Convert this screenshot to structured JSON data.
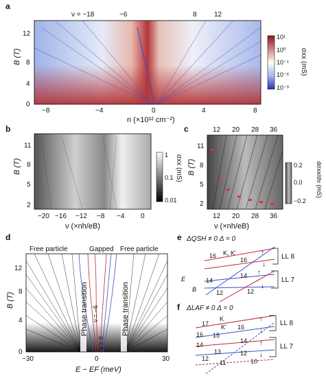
{
  "panels": {
    "a": {
      "label": "a",
      "nu_markers": [
        "ν = −18",
        "−6",
        "8",
        "12"
      ],
      "ylabel": "B (T)",
      "xlabel": "n (×10¹² cm⁻²)",
      "xticks": [
        "−8",
        "−4",
        "0",
        "4",
        "8"
      ],
      "yticks": [
        "0",
        "4",
        "8",
        "12"
      ],
      "cbar_label": "σxx (mS)",
      "cbar_ticks": [
        "10¹",
        "10⁰",
        "10⁻¹",
        "10⁻²",
        "10⁻³"
      ]
    },
    "b": {
      "label": "b",
      "ylabel": "B (T)",
      "xlabel": "ν (×nh/eB)",
      "xticks": [
        "−20",
        "−16",
        "−12",
        "−8",
        "−4",
        "0"
      ],
      "yticks": [
        "2",
        "5",
        "8",
        "11"
      ],
      "cbar_label": "σxx (mS)",
      "cbar_ticks": [
        "1",
        "0.1",
        "0.01"
      ]
    },
    "c": {
      "label": "c",
      "ylabel": "B (T)",
      "xlabel": "ν (×nh/eB)",
      "xticks": [
        "12",
        "20",
        "28",
        "36"
      ],
      "xticks_top": [
        "12",
        "20",
        "28",
        "36"
      ],
      "yticks": [
        "2",
        "5",
        "8",
        "11"
      ],
      "cbar_label": "dσxx/dν (mS)",
      "cbar_ticks": [
        "0.2",
        "0.0",
        "−0.2"
      ]
    },
    "d": {
      "label": "d",
      "ylabel": "B (T)",
      "xlabel": "E − EF (meV)",
      "xticks": [
        "−30",
        "0",
        "30"
      ],
      "yticks": [
        "0",
        "4",
        "8",
        "12"
      ],
      "region_labels": [
        "Free particle",
        "Gapped",
        "Free particle"
      ],
      "transition_label": "Phase transition",
      "nu_labels": [
        "ν = −6",
        "ν = 0"
      ]
    },
    "e": {
      "label": "e",
      "condition": "ΔQSH ≠ 0  Δ = 0",
      "valley": "K, K′",
      "levels": [
        "LL 8",
        "LL 7"
      ],
      "numbers": [
        "16",
        "16",
        "14",
        "14",
        "12",
        "12"
      ],
      "arrows": [
        "↑",
        "↓",
        "↑",
        "↓"
      ],
      "axes": [
        "E",
        "B"
      ]
    },
    "f": {
      "label": "f",
      "condition": "ΔLAF ≠ 0  Δ = 0",
      "valley": "K",
      "valley2": "K′",
      "levels": [
        "LL 8",
        "LL 7"
      ],
      "numbers": [
        "17",
        "16",
        "16",
        "15",
        "14",
        "14",
        "13",
        "12",
        "12",
        "11",
        "10"
      ],
      "arrows": [
        "↑",
        "↓",
        "↑",
        "↓"
      ]
    }
  },
  "colors": {
    "red": "#c0282d",
    "blue": "#3a4fc9"
  }
}
